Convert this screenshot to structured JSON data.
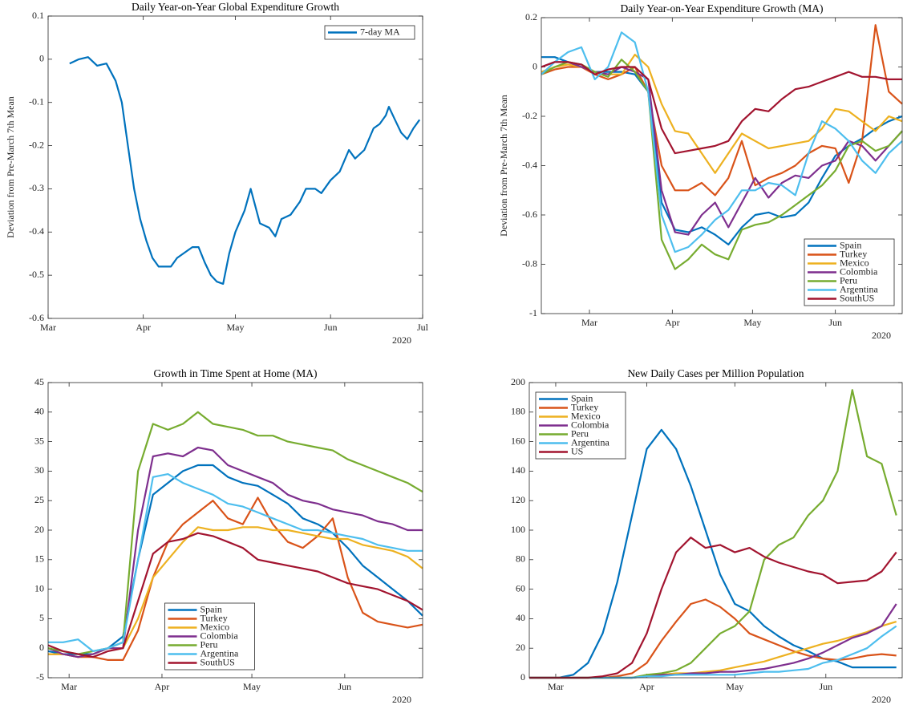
{
  "chart_data": [
    {
      "type": "line",
      "title": "Daily Year-on-Year Global Expenditure Growth",
      "y_label": "Deviation from Pre-March 7th Mean",
      "year_label": "2020",
      "legend": "upper right",
      "x": [
        7,
        10,
        13,
        16,
        19,
        22,
        24,
        26,
        28,
        30,
        32,
        34,
        36,
        40,
        42,
        45,
        47,
        49,
        51,
        53,
        55,
        57,
        59,
        61,
        64,
        66,
        69,
        72,
        74,
        76,
        79,
        82,
        84,
        87,
        89,
        92,
        95,
        98,
        100,
        103,
        106,
        108,
        110,
        111,
        113,
        115,
        117,
        119,
        121
      ],
      "xlim": [
        0,
        122
      ],
      "xticks": [
        {
          "value": 0,
          "label": "Mar"
        },
        {
          "value": 31,
          "label": "Apr"
        },
        {
          "value": 61,
          "label": "May"
        },
        {
          "value": 92,
          "label": "Jun"
        },
        {
          "value": 122,
          "label": "Jul"
        }
      ],
      "ylim": [
        -0.6,
        0.1
      ],
      "yticks": [
        0.1,
        0,
        -0.1,
        -0.2,
        -0.3,
        -0.4,
        -0.5,
        -0.6
      ],
      "series": [
        {
          "name": "7-day MA",
          "color": "#0072BD",
          "values": [
            -0.01,
            0,
            0.005,
            -0.015,
            -0.01,
            -0.05,
            -0.1,
            -0.2,
            -0.3,
            -0.37,
            -0.42,
            -0.46,
            -0.48,
            -0.48,
            -0.46,
            -0.445,
            -0.435,
            -0.435,
            -0.47,
            -0.5,
            -0.515,
            -0.52,
            -0.45,
            -0.4,
            -0.35,
            -0.3,
            -0.38,
            -0.39,
            -0.41,
            -0.37,
            -0.36,
            -0.33,
            -0.3,
            -0.3,
            -0.31,
            -0.28,
            -0.26,
            -0.21,
            -0.23,
            -0.21,
            -0.16,
            -0.15,
            -0.13,
            -0.11,
            -0.14,
            -0.17,
            -0.185,
            -0.16,
            -0.14
          ]
        }
      ]
    },
    {
      "type": "line",
      "title": "Daily Year-on-Year Expenditure Growth (MA)",
      "y_label": "Deviation from Pre-March 7th Mean",
      "year_label": "2020",
      "legend": "lower right",
      "x": [
        -18,
        -13,
        -8,
        -3,
        2,
        7,
        12,
        17,
        22,
        27,
        32,
        37,
        42,
        47,
        52,
        57,
        62,
        67,
        72,
        77,
        82,
        87,
        92,
        97,
        102,
        107,
        112,
        117
      ],
      "xlim": [
        -18,
        117
      ],
      "xticks": [
        {
          "value": 0,
          "label": "Mar"
        },
        {
          "value": 31,
          "label": "Apr"
        },
        {
          "value": 61,
          "label": "May"
        },
        {
          "value": 92,
          "label": "Jun"
        }
      ],
      "ylim": [
        -1,
        0.2
      ],
      "yticks": [
        0.2,
        0,
        -0.2,
        -0.4,
        -0.6,
        -0.8,
        -1
      ],
      "series": [
        {
          "name": "Spain",
          "color": "#0072BD",
          "values": [
            0.04,
            0.04,
            0.02,
            0,
            -0.02,
            -0.02,
            -0.02,
            -0.03,
            -0.1,
            -0.55,
            -0.66,
            -0.67,
            -0.65,
            -0.68,
            -0.72,
            -0.65,
            -0.6,
            -0.59,
            -0.61,
            -0.6,
            -0.55,
            -0.45,
            -0.36,
            -0.32,
            -0.29,
            -0.25,
            -0.22,
            -0.2
          ]
        },
        {
          "name": "Turkey",
          "color": "#D95319",
          "values": [
            -0.03,
            -0.01,
            0,
            0,
            -0.03,
            -0.05,
            -0.03,
            0,
            -0.1,
            -0.4,
            -0.5,
            -0.5,
            -0.47,
            -0.52,
            -0.45,
            -0.3,
            -0.48,
            -0.45,
            -0.43,
            -0.4,
            -0.35,
            -0.32,
            -0.33,
            -0.47,
            -0.3,
            0.17,
            -0.1,
            -0.15
          ]
        },
        {
          "name": "Mexico",
          "color": "#EDB120",
          "values": [
            -0.02,
            0,
            0.01,
            0,
            -0.02,
            -0.03,
            -0.03,
            0.05,
            0,
            -0.15,
            -0.26,
            -0.27,
            -0.35,
            -0.43,
            -0.35,
            -0.27,
            -0.3,
            -0.33,
            -0.32,
            -0.31,
            -0.3,
            -0.25,
            -0.17,
            -0.18,
            -0.22,
            -0.26,
            -0.2,
            -0.22
          ]
        },
        {
          "name": "Colombia",
          "color": "#7E2F8E",
          "values": [
            0,
            0.02,
            0.02,
            0,
            -0.02,
            -0.03,
            0,
            -0.02,
            -0.05,
            -0.5,
            -0.67,
            -0.68,
            -0.6,
            -0.55,
            -0.65,
            -0.55,
            -0.45,
            -0.53,
            -0.47,
            -0.44,
            -0.45,
            -0.4,
            -0.38,
            -0.3,
            -0.32,
            -0.38,
            -0.32,
            -0.26
          ]
        },
        {
          "name": "Peru",
          "color": "#77AC30",
          "values": [
            -0.03,
            0,
            0.02,
            0.01,
            -0.02,
            -0.04,
            0.03,
            -0.02,
            -0.1,
            -0.7,
            -0.82,
            -0.78,
            -0.72,
            -0.76,
            -0.78,
            -0.66,
            -0.64,
            -0.63,
            -0.6,
            -0.56,
            -0.52,
            -0.48,
            -0.42,
            -0.32,
            -0.3,
            -0.34,
            -0.32,
            -0.26
          ]
        },
        {
          "name": "Argentina",
          "color": "#4DBEEE",
          "values": [
            -0.03,
            0.02,
            0.06,
            0.08,
            -0.05,
            0,
            0.14,
            0.1,
            -0.1,
            -0.6,
            -0.75,
            -0.73,
            -0.68,
            -0.62,
            -0.58,
            -0.5,
            -0.5,
            -0.47,
            -0.48,
            -0.52,
            -0.35,
            -0.22,
            -0.25,
            -0.3,
            -0.38,
            -0.43,
            -0.35,
            -0.3
          ]
        },
        {
          "name": "SouthUS",
          "color": "#A2142F",
          "values": [
            0,
            0.02,
            0.02,
            0.01,
            -0.03,
            -0.01,
            0,
            0,
            -0.05,
            -0.25,
            -0.35,
            -0.34,
            -0.33,
            -0.32,
            -0.3,
            -0.22,
            -0.17,
            -0.18,
            -0.13,
            -0.09,
            -0.08,
            -0.06,
            -0.04,
            -0.02,
            -0.04,
            -0.04,
            -0.05,
            -0.05
          ]
        }
      ]
    },
    {
      "type": "line",
      "title": "Growth in Time Spent at Home (MA)",
      "year_label": "2020",
      "legend": "lower center",
      "x": [
        -7,
        -2,
        3,
        8,
        13,
        18,
        23,
        28,
        33,
        38,
        43,
        48,
        53,
        58,
        63,
        68,
        73,
        78,
        83,
        88,
        93,
        98,
        103,
        108,
        113,
        118
      ],
      "xlim": [
        -7,
        118
      ],
      "xticks": [
        {
          "value": 0,
          "label": "Mar"
        },
        {
          "value": 31,
          "label": "Apr"
        },
        {
          "value": 61,
          "label": "May"
        },
        {
          "value": 92,
          "label": "Jun"
        }
      ],
      "ylim": [
        -5,
        45
      ],
      "yticks": [
        -5,
        0,
        5,
        10,
        15,
        20,
        25,
        30,
        35,
        40,
        45
      ],
      "series": [
        {
          "name": "Spain",
          "color": "#0072BD",
          "values": [
            -0.5,
            -1,
            -1,
            -1,
            0,
            2,
            15,
            26,
            28,
            30,
            31,
            31,
            29,
            28,
            27.5,
            26,
            24.5,
            22,
            21,
            19.5,
            17,
            14,
            12,
            10,
            8,
            5.5
          ]
        },
        {
          "name": "Turkey",
          "color": "#D95319",
          "values": [
            -1,
            -1,
            -1.5,
            -1.5,
            -2,
            -2,
            3,
            12,
            18,
            21,
            23,
            25,
            22,
            21,
            25.5,
            21,
            18,
            17,
            19,
            22,
            12,
            6,
            4.5,
            4,
            3.5,
            4
          ]
        },
        {
          "name": "Mexico",
          "color": "#EDB120",
          "values": [
            -1,
            -1,
            -1.5,
            -1,
            0,
            0,
            5,
            12,
            15,
            18,
            20.5,
            20,
            20,
            20.5,
            20.5,
            20,
            20,
            19.5,
            19,
            18.5,
            18.5,
            17.5,
            17,
            16.5,
            15.5,
            13.5
          ]
        },
        {
          "name": "Colombia",
          "color": "#7E2F8E",
          "values": [
            0,
            -1,
            -1.5,
            -1,
            0,
            0,
            20,
            32.5,
            33,
            32.5,
            34,
            33.5,
            31,
            30,
            29,
            28,
            26,
            25,
            24.5,
            23.5,
            23,
            22.5,
            21.5,
            21,
            20,
            20
          ]
        },
        {
          "name": "Peru",
          "color": "#77AC30",
          "values": [
            0,
            -0.5,
            -1,
            -0.5,
            0,
            1,
            30,
            38,
            37,
            38,
            40,
            38,
            37.5,
            37,
            36,
            36,
            35,
            34.5,
            34,
            33.5,
            32,
            31,
            30,
            29,
            28,
            26.5
          ]
        },
        {
          "name": "Argentina",
          "color": "#4DBEEE",
          "values": [
            1,
            1,
            1.5,
            -0.5,
            0,
            1,
            15,
            29,
            29.5,
            28,
            27,
            26,
            24.5,
            24,
            23,
            22,
            21,
            20,
            20,
            19.5,
            19,
            18.5,
            17.5,
            17,
            16.5,
            16.5
          ]
        },
        {
          "name": "SouthUS",
          "color": "#A2142F",
          "values": [
            0.5,
            -0.5,
            -1,
            -1.5,
            -0.5,
            0,
            8,
            16,
            18,
            18.5,
            19.5,
            19,
            18,
            17,
            15,
            14.5,
            14,
            13.5,
            13,
            12,
            11,
            10.5,
            10,
            9,
            8,
            6.5
          ]
        }
      ]
    },
    {
      "type": "line",
      "title": "New Daily Cases per Million Population",
      "year_label": "2020",
      "legend": "upper left",
      "x": [
        -9,
        -4,
        1,
        6,
        11,
        16,
        21,
        26,
        31,
        36,
        41,
        46,
        51,
        56,
        61,
        66,
        71,
        76,
        81,
        86,
        91,
        96,
        101,
        106,
        111,
        116
      ],
      "xlim": [
        -9,
        118
      ],
      "xticks": [
        {
          "value": 0,
          "label": "Mar"
        },
        {
          "value": 31,
          "label": "Apr"
        },
        {
          "value": 61,
          "label": "May"
        },
        {
          "value": 92,
          "label": "Jun"
        }
      ],
      "ylim": [
        0,
        200
      ],
      "yticks": [
        0,
        20,
        40,
        60,
        80,
        100,
        120,
        140,
        160,
        180,
        200
      ],
      "series": [
        {
          "name": "Spain",
          "color": "#0072BD",
          "values": [
            0,
            0,
            0,
            2,
            10,
            30,
            65,
            110,
            155,
            168,
            155,
            130,
            100,
            70,
            50,
            45,
            35,
            28,
            22,
            18,
            13,
            11,
            7,
            7,
            7,
            7
          ]
        },
        {
          "name": "Turkey",
          "color": "#D95319",
          "values": [
            0,
            0,
            0,
            0,
            0,
            0,
            1,
            3,
            10,
            25,
            38,
            50,
            53,
            48,
            40,
            30,
            26,
            22,
            18,
            15,
            13,
            12,
            13,
            15,
            16,
            15
          ]
        },
        {
          "name": "Mexico",
          "color": "#EDB120",
          "values": [
            0,
            0,
            0,
            0,
            0,
            0,
            0,
            0,
            1,
            2,
            3,
            3,
            4,
            5,
            7,
            9,
            11,
            14,
            17,
            20,
            23,
            25,
            28,
            31,
            35,
            38
          ]
        },
        {
          "name": "Colombia",
          "color": "#7E2F8E",
          "values": [
            0,
            0,
            0,
            0,
            0,
            0,
            0,
            0,
            1,
            2,
            2,
            3,
            3,
            4,
            4,
            5,
            6,
            8,
            10,
            13,
            17,
            22,
            27,
            30,
            35,
            50
          ]
        },
        {
          "name": "Peru",
          "color": "#77AC30",
          "values": [
            0,
            0,
            0,
            0,
            0,
            0,
            0,
            0,
            2,
            3,
            5,
            10,
            20,
            30,
            35,
            45,
            80,
            90,
            95,
            110,
            120,
            140,
            195,
            150,
            145,
            110
          ]
        },
        {
          "name": "Argentina",
          "color": "#4DBEEE",
          "values": [
            0,
            0,
            0,
            0,
            0,
            0,
            0,
            0,
            1,
            1,
            2,
            2,
            2,
            2,
            2,
            3,
            4,
            4,
            5,
            6,
            10,
            12,
            16,
            20,
            28,
            35
          ]
        },
        {
          "name": "US",
          "color": "#A2142F",
          "values": [
            0,
            0,
            0,
            0,
            0,
            1,
            3,
            10,
            30,
            60,
            85,
            95,
            88,
            90,
            85,
            88,
            82,
            78,
            75,
            72,
            70,
            64,
            65,
            66,
            72,
            85
          ]
        }
      ]
    }
  ]
}
